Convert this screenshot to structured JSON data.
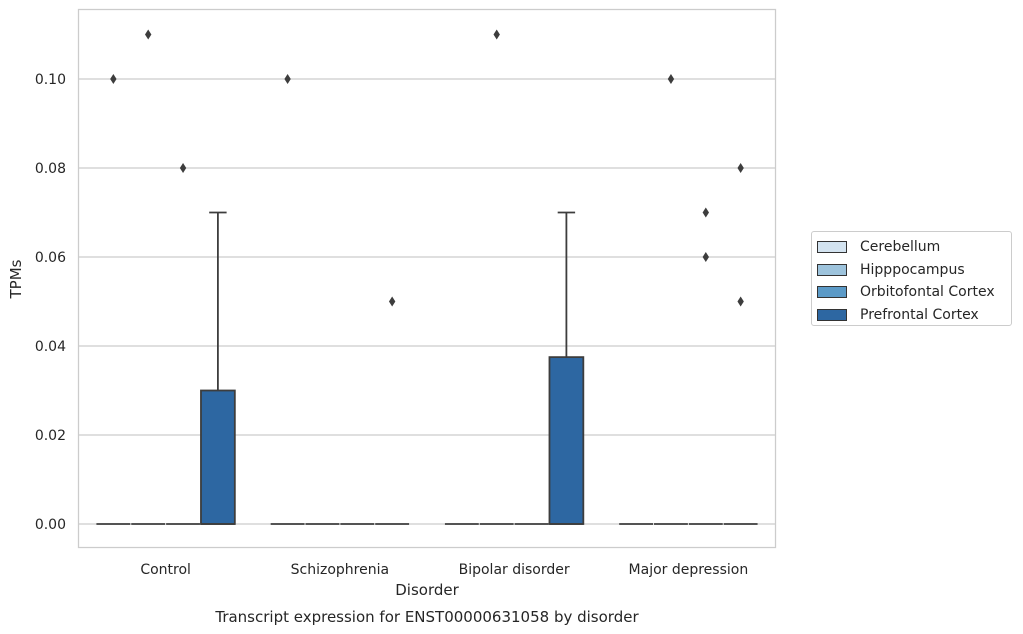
{
  "chart_data": {
    "type": "box",
    "title": "Transcript expression for ENST00000631058 by disorder",
    "xlabel": "Disorder",
    "ylabel": "TPMs",
    "ylim": [
      -0.005,
      0.116
    ],
    "yticks": [
      0.0,
      0.02,
      0.04,
      0.06,
      0.08,
      0.1
    ],
    "ytick_labels": [
      "0.00",
      "0.02",
      "0.04",
      "0.06",
      "0.08",
      "0.10"
    ],
    "grid": true,
    "legend_position": "right",
    "categories": [
      "Control",
      "Schizophrenia",
      "Bipolar disorder",
      "Major depression"
    ],
    "series": [
      {
        "name": "Cerebellum",
        "color": "#d3e3f0",
        "boxes": [
          {
            "q1": 0,
            "median": 0,
            "q3": 0,
            "whislo": 0,
            "whishi": 0,
            "fliers": [
              0.1
            ]
          },
          {
            "q1": 0,
            "median": 0,
            "q3": 0,
            "whislo": 0,
            "whishi": 0,
            "fliers": [
              0.1
            ]
          },
          {
            "q1": 0,
            "median": 0,
            "q3": 0,
            "whislo": 0,
            "whishi": 0,
            "fliers": []
          },
          {
            "q1": 0,
            "median": 0,
            "q3": 0,
            "whislo": 0,
            "whishi": 0,
            "fliers": []
          }
        ]
      },
      {
        "name": "Hipppocampus",
        "color": "#9dc3dc",
        "boxes": [
          {
            "q1": 0,
            "median": 0,
            "q3": 0,
            "whislo": 0,
            "whishi": 0,
            "fliers": [
              0.11
            ]
          },
          {
            "q1": 0,
            "median": 0,
            "q3": 0,
            "whislo": 0,
            "whishi": 0,
            "fliers": []
          },
          {
            "q1": 0,
            "median": 0,
            "q3": 0,
            "whislo": 0,
            "whishi": 0,
            "fliers": [
              0.11
            ]
          },
          {
            "q1": 0,
            "median": 0,
            "q3": 0,
            "whislo": 0,
            "whishi": 0,
            "fliers": [
              0.1
            ]
          }
        ]
      },
      {
        "name": "Orbitofontal Cortex",
        "color": "#5b9ac7",
        "boxes": [
          {
            "q1": 0,
            "median": 0,
            "q3": 0,
            "whislo": 0,
            "whishi": 0,
            "fliers": [
              0.08
            ]
          },
          {
            "q1": 0,
            "median": 0,
            "q3": 0,
            "whislo": 0,
            "whishi": 0,
            "fliers": []
          },
          {
            "q1": 0,
            "median": 0,
            "q3": 0,
            "whislo": 0,
            "whishi": 0,
            "fliers": []
          },
          {
            "q1": 0,
            "median": 0,
            "q3": 0,
            "whislo": 0,
            "whishi": 0,
            "fliers": [
              0.07,
              0.06
            ]
          }
        ]
      },
      {
        "name": "Prefrontal Cortex",
        "color": "#2d67a2",
        "boxes": [
          {
            "q1": 0,
            "median": 0,
            "q3": 0.03,
            "whislo": 0,
            "whishi": 0.07,
            "fliers": []
          },
          {
            "q1": 0,
            "median": 0,
            "q3": 0,
            "whislo": 0,
            "whishi": 0,
            "fliers": [
              0.05
            ]
          },
          {
            "q1": 0,
            "median": 0,
            "q3": 0.0375,
            "whislo": 0,
            "whishi": 0.07,
            "fliers": []
          },
          {
            "q1": 0,
            "median": 0,
            "q3": 0,
            "whislo": 0,
            "whishi": 0,
            "fliers": [
              0.08,
              0.05
            ]
          }
        ]
      }
    ]
  }
}
